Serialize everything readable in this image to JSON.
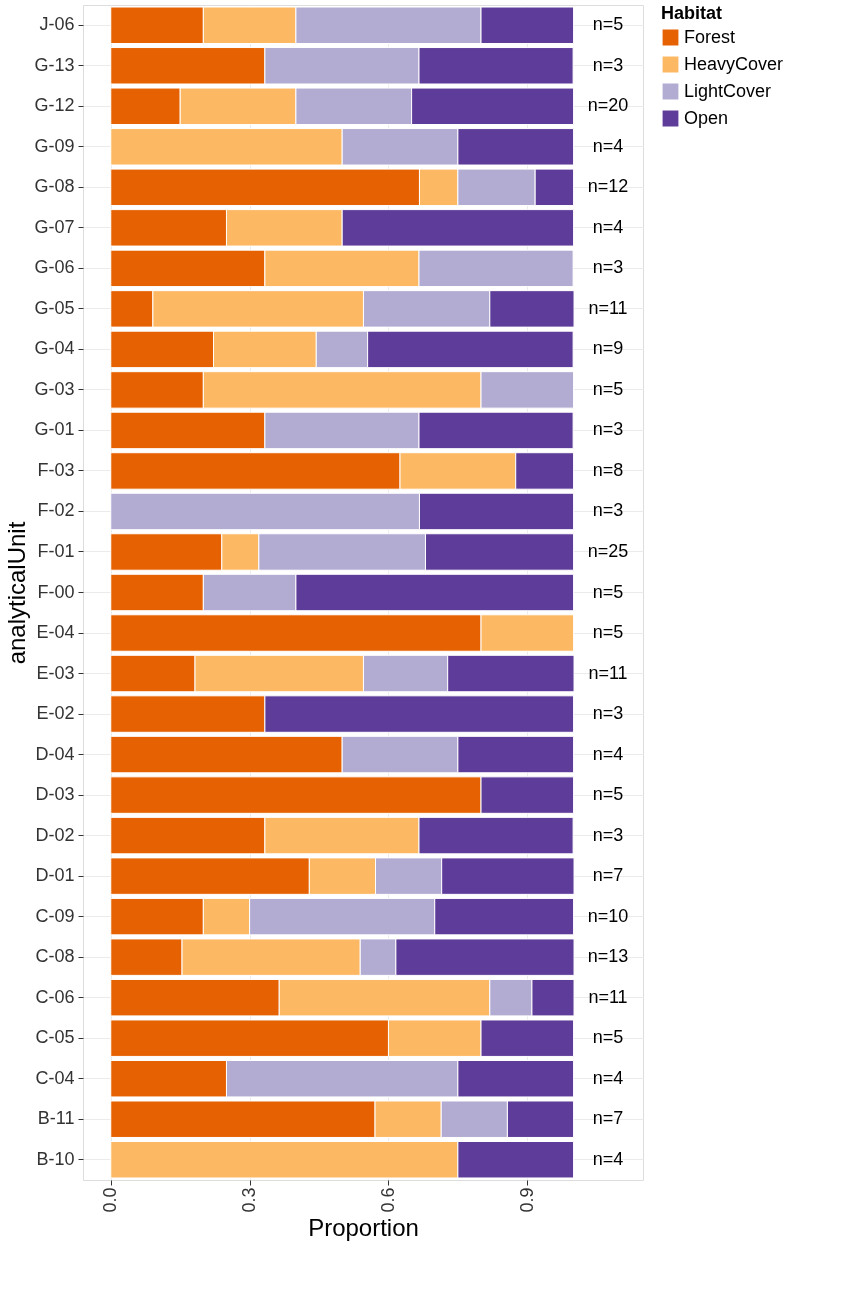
{
  "chart_data": {
    "type": "bar",
    "orientation": "horizontal",
    "stacked": true,
    "xlabel": "Proportion",
    "ylabel": "analyticalUnit",
    "legend_title": "Habitat",
    "legend": "right",
    "grid": true,
    "categories": [
      "J-06",
      "G-13",
      "G-12",
      "G-09",
      "G-08",
      "G-07",
      "G-06",
      "G-05",
      "G-04",
      "G-03",
      "G-01",
      "F-03",
      "F-02",
      "F-01",
      "F-00",
      "E-04",
      "E-03",
      "E-02",
      "D-04",
      "D-03",
      "D-02",
      "D-01",
      "C-09",
      "C-08",
      "C-06",
      "C-05",
      "C-04",
      "B-11",
      "B-10"
    ],
    "xlim": [
      -0.06,
      1.15
    ],
    "xticks": [
      {
        "value": 0,
        "label": "0.0"
      },
      0.3,
      0.6,
      0.9
    ],
    "series": [
      {
        "name": "Forest",
        "color": "#e66101",
        "values": [
          0.2,
          0.333,
          0.15,
          null,
          0.667,
          0.25,
          0.333,
          0.091,
          0.222,
          0.2,
          0.333,
          0.625,
          null,
          0.24,
          0.2,
          0.8,
          0.182,
          0.333,
          0.5,
          0.8,
          0.333,
          0.429,
          0.2,
          0.154,
          0.364,
          0.6,
          0.25,
          0.571,
          null
        ]
      },
      {
        "name": "HeavyCover",
        "color": "#fdb863",
        "values": [
          0.2,
          null,
          0.25,
          0.5,
          0.083,
          0.25,
          0.333,
          0.455,
          0.222,
          0.6,
          null,
          0.25,
          null,
          0.08,
          null,
          0.2,
          0.364,
          null,
          null,
          null,
          0.333,
          0.143,
          0.1,
          0.385,
          0.455,
          0.2,
          null,
          0.143,
          0.75
        ]
      },
      {
        "name": "LightCover",
        "color": "#b2abd2",
        "values": [
          0.4,
          0.333,
          0.25,
          0.25,
          0.167,
          null,
          0.333,
          0.273,
          0.111,
          0.2,
          0.333,
          null,
          0.667,
          0.36,
          0.2,
          null,
          0.182,
          null,
          0.25,
          null,
          null,
          0.143,
          0.4,
          0.077,
          0.091,
          null,
          0.5,
          0.143,
          null
        ]
      },
      {
        "name": "Open",
        "color": "#5e3c99",
        "values": [
          0.2,
          0.333,
          0.35,
          0.25,
          0.083,
          0.5,
          null,
          0.182,
          0.444,
          null,
          0.333,
          0.125,
          0.333,
          0.32,
          0.6,
          null,
          0.273,
          0.667,
          0.25,
          0.2,
          0.333,
          0.286,
          0.3,
          0.385,
          0.091,
          0.2,
          0.25,
          0.143,
          0.25
        ]
      }
    ],
    "annotations": [
      "n=5",
      "n=3",
      "n=20",
      "n=4",
      "n=12",
      "n=4",
      "n=3",
      "n=11",
      "n=9",
      "n=5",
      "n=3",
      "n=8",
      "n=3",
      "n=25",
      "n=5",
      "n=5",
      "n=11",
      "n=3",
      "n=4",
      "n=5",
      "n=3",
      "n=7",
      "n=10",
      "n=13",
      "n=11",
      "n=5",
      "n=4",
      "n=7",
      "n=4"
    ]
  }
}
